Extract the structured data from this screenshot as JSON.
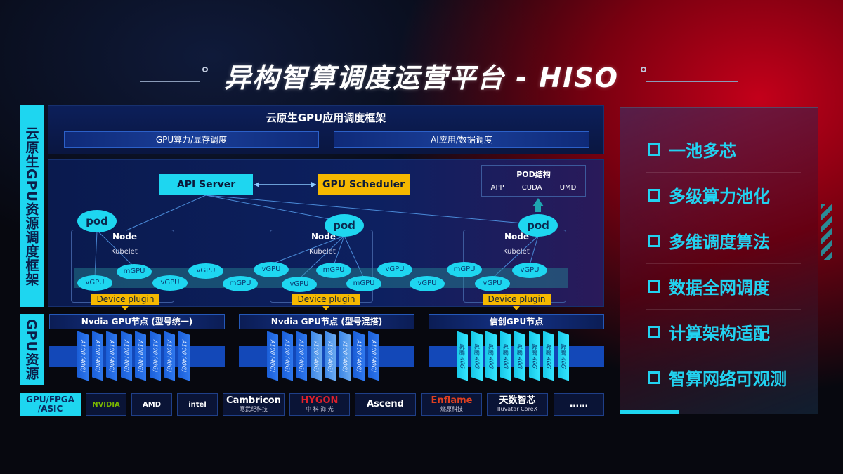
{
  "title": "异构智算调度运营平台 - HISO",
  "side_labels": {
    "framework": "云原生GPU资源调度框架",
    "resources": "GPU资源"
  },
  "top": {
    "title": "云原生GPU应用调度框架",
    "bar1": "GPU算力/显存调度",
    "bar2": "AI应用/数据调度"
  },
  "diagram": {
    "api_server": "API Server",
    "gpu_scheduler": "GPU Scheduler",
    "pod_struct": {
      "title": "POD结构",
      "items": [
        "APP",
        "CUDA",
        "UMD"
      ]
    },
    "pod": "pod",
    "node": "Node",
    "kubelet": "Kubelet",
    "device_plugin": "Device plugin",
    "units": [
      "vGPU",
      "mGPU",
      "vGPU",
      "vGPU",
      "mGPU",
      "vGPU",
      "vGPU",
      "mGPU",
      "mGPU",
      "vGPU",
      "vGPU",
      "mGPU",
      "vGPU",
      "vGPU"
    ]
  },
  "gpu_nodes": [
    {
      "title": "Nvdia GPU节点 (型号统一)",
      "cards": [
        "A100 (40G)",
        "A100 (40G)",
        "A100 (40G)",
        "A100 (40G)",
        "A100 (40G)",
        "A100 (40G)",
        "A100 (40G)",
        "A100 (40G)"
      ]
    },
    {
      "title": "Nvdia GPU节点 (型号混搭)",
      "cards": [
        "A100 (40G)",
        "A100 (40G)",
        "A100 (40G)",
        "V100 (40G)",
        "V100 (40G)",
        "V100 (40G)",
        "A100 (40G)",
        "A100 (40G)"
      ]
    },
    {
      "title": "信创GPU节点",
      "cards": [
        "昇腾 40G",
        "昇腾 40G",
        "昇腾 40G",
        "昇腾 40G",
        "昇腾 40G",
        "昇腾 40G",
        "昇腾 40G",
        "昇腾 40G"
      ]
    }
  ],
  "vendors": {
    "label": "GPU/FPGA /ASIC",
    "items": [
      {
        "name": "NVIDIA",
        "sub": ""
      },
      {
        "name": "AMD",
        "sub": ""
      },
      {
        "name": "intel",
        "sub": ""
      },
      {
        "name": "Cambricon",
        "sub": "寒武纪科技"
      },
      {
        "name": "HYGON",
        "sub": "中 科 海 光"
      },
      {
        "name": "Ascend",
        "sub": ""
      },
      {
        "name": "Enflame",
        "sub": "燧原科技"
      },
      {
        "name": "天数智芯",
        "sub": "Iluvatar CoreX"
      },
      {
        "name": "……",
        "sub": ""
      }
    ]
  },
  "features": [
    "一池多芯",
    "多级算力池化",
    "多维调度算法",
    "数据全网调度",
    "计算架构适配",
    "智算网络可观测"
  ],
  "colors": {
    "cyan": "#1ed6f0",
    "orange": "#f5b800",
    "navy": "#0c1f5a",
    "red": "#c3001a"
  }
}
